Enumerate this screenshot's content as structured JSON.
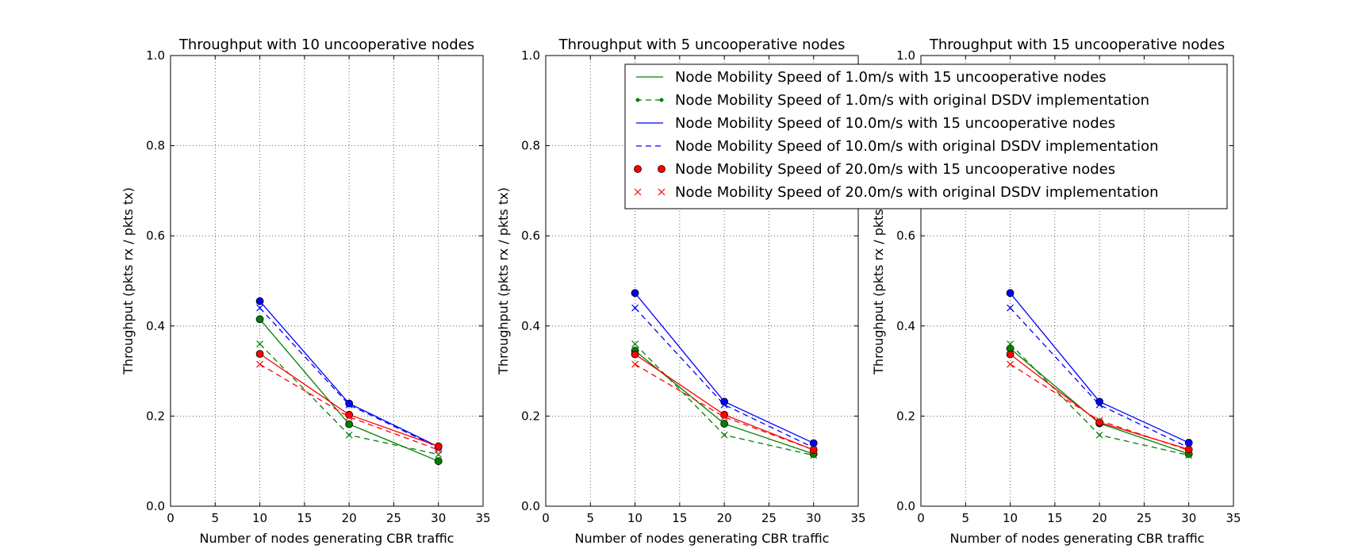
{
  "chart_data": [
    {
      "type": "line",
      "title": "Throughput with 10 uncooperative nodes",
      "xlabel": "Number of nodes generating CBR traffic",
      "ylabel": "Throughput (pkts rx / pkts tx)",
      "xlim": [
        0,
        35
      ],
      "ylim": [
        0.0,
        1.0
      ],
      "xticks": [
        "0",
        "5",
        "10",
        "15",
        "20",
        "25",
        "30",
        "35"
      ],
      "yticks": [
        "0.0",
        "0.2",
        "0.4",
        "0.6",
        "0.8",
        "1.0"
      ],
      "grid": true,
      "x": [
        10,
        20,
        30
      ],
      "series": [
        {
          "name": "Node Mobility Speed of 1.0m/s with uncooperative nodes",
          "values": [
            0.415,
            0.182,
            0.1
          ],
          "color": "#008000",
          "style": "solid",
          "marker": "circle"
        },
        {
          "name": "Node Mobility Speed of 1.0m/s with original DSDV implementation",
          "values": [
            0.36,
            0.158,
            0.115
          ],
          "color": "#008000",
          "style": "dashed",
          "marker": "x"
        },
        {
          "name": "Node Mobility Speed of 10.0m/s with uncooperative nodes",
          "values": [
            0.455,
            0.228,
            0.132
          ],
          "color": "#0000ff",
          "style": "solid",
          "marker": "circle"
        },
        {
          "name": "Node Mobility Speed of 10.0m/s with original DSDV implementation",
          "values": [
            0.44,
            0.225,
            0.13
          ],
          "color": "#0000ff",
          "style": "dashed",
          "marker": "x"
        },
        {
          "name": "Node Mobility Speed of 20.0m/s with uncooperative nodes",
          "values": [
            0.338,
            0.203,
            0.133
          ],
          "color": "#ff0000",
          "style": "solid",
          "marker": "circle"
        },
        {
          "name": "Node Mobility Speed of 20.0m/s with original DSDV implementation",
          "values": [
            0.315,
            0.198,
            0.125
          ],
          "color": "#ff0000",
          "style": "dashed",
          "marker": "x"
        }
      ]
    },
    {
      "type": "line",
      "title": "Throughput with 5 uncooperative nodes",
      "xlabel": "Number of nodes generating CBR traffic",
      "ylabel": "Throughput (pkts rx / pkts tx)",
      "xlim": [
        0,
        35
      ],
      "ylim": [
        0.0,
        1.0
      ],
      "xticks": [
        "0",
        "5",
        "10",
        "15",
        "20",
        "25",
        "30",
        "35"
      ],
      "yticks": [
        "0.0",
        "0.2",
        "0.4",
        "0.6",
        "0.8",
        "1.0"
      ],
      "grid": true,
      "x": [
        10,
        20,
        30
      ],
      "series": [
        {
          "name": "Node Mobility Speed of 1.0m/s with uncooperative nodes",
          "values": [
            0.345,
            0.183,
            0.116
          ],
          "color": "#008000",
          "style": "solid",
          "marker": "circle"
        },
        {
          "name": "Node Mobility Speed of 1.0m/s with original DSDV implementation",
          "values": [
            0.36,
            0.158,
            0.113
          ],
          "color": "#008000",
          "style": "dashed",
          "marker": "x"
        },
        {
          "name": "Node Mobility Speed of 10.0m/s with uncooperative nodes",
          "values": [
            0.473,
            0.232,
            0.14
          ],
          "color": "#0000ff",
          "style": "solid",
          "marker": "circle"
        },
        {
          "name": "Node Mobility Speed of 10.0m/s with original DSDV implementation",
          "values": [
            0.44,
            0.225,
            0.13
          ],
          "color": "#0000ff",
          "style": "dashed",
          "marker": "x"
        },
        {
          "name": "Node Mobility Speed of 20.0m/s with uncooperative nodes",
          "values": [
            0.337,
            0.203,
            0.125
          ],
          "color": "#ff0000",
          "style": "solid",
          "marker": "circle"
        },
        {
          "name": "Node Mobility Speed of 20.0m/s with original DSDV implementation",
          "values": [
            0.315,
            0.198,
            0.125
          ],
          "color": "#ff0000",
          "style": "dashed",
          "marker": "x"
        }
      ]
    },
    {
      "type": "line",
      "title": "Throughput with 15 uncooperative nodes",
      "xlabel": "Number of nodes generating CBR traffic",
      "ylabel": "Throughput (pkts rx / pkts tx)",
      "xlim": [
        0,
        35
      ],
      "ylim": [
        0.0,
        1.0
      ],
      "xticks": [
        "0",
        "5",
        "10",
        "15",
        "20",
        "25",
        "30",
        "35"
      ],
      "yticks": [
        "0.0",
        "0.2",
        "0.4",
        "0.6",
        "0.8",
        "1.0"
      ],
      "grid": true,
      "x": [
        10,
        20,
        30
      ],
      "legend": "top-right",
      "series": [
        {
          "name": "Node Mobility Speed of 1.0m/s with 15 uncooperative nodes",
          "values": [
            0.35,
            0.184,
            0.116
          ],
          "color": "#008000",
          "style": "solid",
          "marker": "circle"
        },
        {
          "name": "Node Mobility Speed of 1.0m/s with original DSDV implementation",
          "values": [
            0.36,
            0.158,
            0.113
          ],
          "color": "#008000",
          "style": "dashed",
          "marker": "x"
        },
        {
          "name": "Node Mobility Speed of 10.0m/s with 15 uncooperative nodes",
          "values": [
            0.473,
            0.232,
            0.141
          ],
          "color": "#0000ff",
          "style": "solid",
          "marker": "circle"
        },
        {
          "name": "Node Mobility Speed of 10.0m/s with original DSDV implementation",
          "values": [
            0.44,
            0.225,
            0.13
          ],
          "color": "#0000ff",
          "style": "dashed",
          "marker": "x"
        },
        {
          "name": "Node Mobility Speed of 20.0m/s with 15 uncooperative nodes",
          "values": [
            0.337,
            0.186,
            0.126
          ],
          "color": "#ff0000",
          "style": "solid",
          "marker": "circle"
        },
        {
          "name": "Node Mobility Speed of 20.0m/s with original DSDV implementation",
          "values": [
            0.315,
            0.19,
            0.124
          ],
          "color": "#ff0000",
          "style": "dashed",
          "marker": "x"
        }
      ]
    }
  ]
}
